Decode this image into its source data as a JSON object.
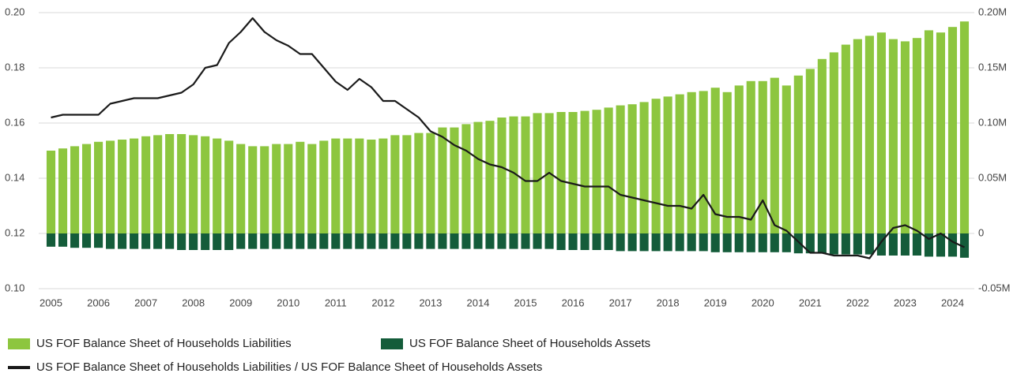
{
  "chart_data": {
    "type": "bar-line",
    "categories": [
      "2005",
      null,
      null,
      null,
      "2006",
      null,
      null,
      null,
      "2007",
      null,
      null,
      null,
      "2008",
      null,
      null,
      null,
      "2009",
      null,
      null,
      null,
      "2010",
      null,
      null,
      null,
      "2011",
      null,
      null,
      null,
      "2012",
      null,
      null,
      null,
      "2013",
      null,
      null,
      null,
      "2014",
      null,
      null,
      null,
      "2015",
      null,
      null,
      null,
      "2016",
      null,
      null,
      null,
      "2017",
      null,
      null,
      null,
      "2018",
      null,
      null,
      null,
      "2019",
      null,
      null,
      null,
      "2020",
      null,
      null,
      null,
      "2021",
      null,
      null,
      null,
      "2022",
      null,
      null,
      null,
      "2023",
      null,
      null,
      null,
      "2024",
      null
    ],
    "series": [
      {
        "name": "US FOF Balance Sheet of Households Liabilities",
        "type": "bar",
        "axis": "y2",
        "color": "#8dc63f",
        "values": [
          0.075,
          0.077,
          0.079,
          0.081,
          0.083,
          0.084,
          0.085,
          0.086,
          0.088,
          0.089,
          0.09,
          0.09,
          0.089,
          0.088,
          0.086,
          0.084,
          0.081,
          0.079,
          0.079,
          0.081,
          0.081,
          0.083,
          0.081,
          0.084,
          0.086,
          0.086,
          0.086,
          0.085,
          0.086,
          0.089,
          0.089,
          0.091,
          0.091,
          0.096,
          0.096,
          0.099,
          0.101,
          0.102,
          0.105,
          0.106,
          0.106,
          0.109,
          0.109,
          0.11,
          0.11,
          0.111,
          0.112,
          0.114,
          0.116,
          0.117,
          0.119,
          0.122,
          0.124,
          0.126,
          0.128,
          0.129,
          0.132,
          0.128,
          0.134,
          0.138,
          0.138,
          0.141,
          0.134,
          0.143,
          0.149,
          0.158,
          0.164,
          0.171,
          0.176,
          0.179,
          0.182,
          0.176,
          0.174,
          0.177,
          0.184,
          0.182,
          0.187,
          0.192
        ]
      },
      {
        "name": "US FOF Balance Sheet of Households Assets",
        "type": "bar",
        "axis": "y2",
        "color": "#145c3a",
        "values": [
          -0.012,
          -0.012,
          -0.013,
          -0.013,
          -0.013,
          -0.014,
          -0.014,
          -0.014,
          -0.014,
          -0.014,
          -0.014,
          -0.015,
          -0.015,
          -0.015,
          -0.015,
          -0.015,
          -0.014,
          -0.014,
          -0.014,
          -0.014,
          -0.014,
          -0.014,
          -0.014,
          -0.014,
          -0.014,
          -0.014,
          -0.014,
          -0.014,
          -0.014,
          -0.014,
          -0.014,
          -0.014,
          -0.014,
          -0.014,
          -0.014,
          -0.014,
          -0.014,
          -0.014,
          -0.014,
          -0.014,
          -0.014,
          -0.014,
          -0.014,
          -0.015,
          -0.015,
          -0.015,
          -0.015,
          -0.015,
          -0.016,
          -0.016,
          -0.016,
          -0.016,
          -0.016,
          -0.016,
          -0.016,
          -0.016,
          -0.017,
          -0.017,
          -0.017,
          -0.017,
          -0.017,
          -0.017,
          -0.017,
          -0.018,
          -0.018,
          -0.018,
          -0.019,
          -0.019,
          -0.019,
          -0.019,
          -0.02,
          -0.02,
          -0.02,
          -0.02,
          -0.021,
          -0.021,
          -0.021,
          -0.022
        ]
      },
      {
        "name": "US FOF Balance Sheet of Households Liabilities / US FOF Balance Sheet of Households Assets",
        "type": "line",
        "axis": "y",
        "color": "#1a1a1a",
        "values": [
          0.162,
          0.163,
          0.163,
          0.163,
          0.163,
          0.167,
          0.168,
          0.169,
          0.169,
          0.169,
          0.17,
          0.171,
          0.174,
          0.18,
          0.181,
          0.189,
          0.193,
          0.198,
          0.193,
          0.19,
          0.188,
          0.185,
          0.185,
          0.18,
          0.175,
          0.172,
          0.176,
          0.173,
          0.168,
          0.168,
          0.165,
          0.162,
          0.157,
          0.155,
          0.152,
          0.15,
          0.147,
          0.145,
          0.144,
          0.142,
          0.139,
          0.139,
          0.142,
          0.139,
          0.138,
          0.137,
          0.137,
          0.137,
          0.134,
          0.133,
          0.132,
          0.131,
          0.13,
          0.13,
          0.129,
          0.134,
          0.127,
          0.126,
          0.126,
          0.125,
          0.132,
          0.123,
          0.121,
          0.117,
          0.113,
          0.113,
          0.112,
          0.112,
          0.112,
          0.111,
          0.117,
          0.122,
          0.123,
          0.121,
          0.118,
          0.12,
          0.117,
          0.115
        ]
      }
    ],
    "ylim": [
      0.1,
      0.2
    ],
    "yticks": [
      {
        "value": 0.1,
        "label": "0.10"
      },
      0.12,
      0.14,
      0.16,
      0.18,
      {
        "value": 0.2,
        "label": "0.20"
      }
    ],
    "y2lim": [
      -0.05,
      0.2
    ],
    "y2ticks": [
      {
        "value": -0.05,
        "label": "-0.05M"
      },
      0,
      {
        "value": 0.05,
        "label": "0.05M"
      },
      {
        "value": 0.1,
        "label": "0.10M"
      },
      {
        "value": 0.15,
        "label": "0.15M"
      },
      {
        "value": 0.2,
        "label": "0.20M"
      }
    ],
    "grid": true,
    "legend": "bottom"
  }
}
